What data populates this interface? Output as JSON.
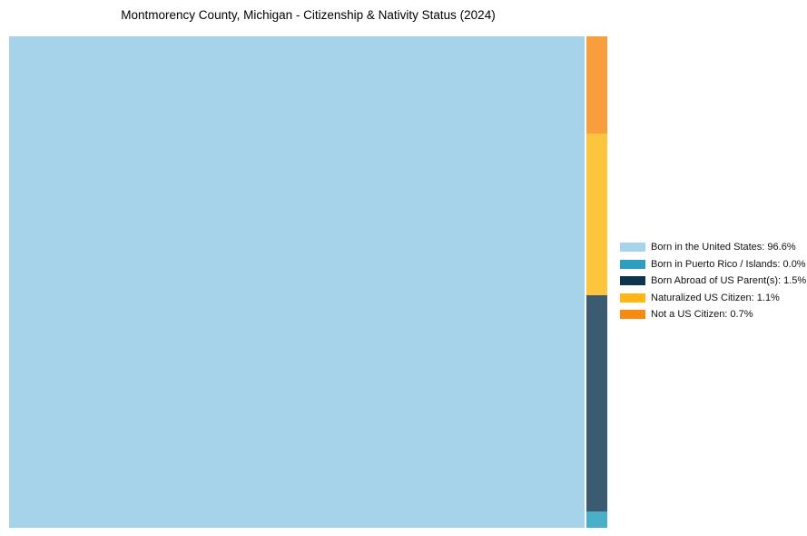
{
  "chart_data": {
    "type": "treemap",
    "title": "Montmorency County, Michigan - Citizenship & Nativity Status (2024)",
    "categories": [
      "Born in the United States",
      "Born in Puerto Rico / Islands",
      "Born Abroad of US Parent(s)",
      "Naturalized US Citizen",
      "Not a US Citizen"
    ],
    "values": [
      96.6,
      0.0,
      1.5,
      1.1,
      0.7
    ],
    "unit": "%",
    "legend_position": "right",
    "layout": {
      "main_tile": "Born in the United States",
      "right_strip_top_to_bottom": [
        "Not a US Citizen",
        "Naturalized US Citizen",
        "Born Abroad of US Parent(s)",
        "Born in Puerto Rico / Islands"
      ]
    },
    "tile_colors": {
      "born_us": "#a6d2ea",
      "puerto_rico": "#4bafc8",
      "born_abroad": "#3a5b70",
      "naturalized": "#fdc53d",
      "not_citizen": "#f99e3c"
    }
  },
  "legend": {
    "items": [
      {
        "label": "Born in the United States: 96.6%",
        "swatch_color": "#a8d4ea"
      },
      {
        "label": "Born in Puerto Rico / Islands: 0.0%",
        "swatch_color": "#2e9ebe"
      },
      {
        "label": "Born Abroad of US Parent(s): 1.5%",
        "swatch_color": "#0e3450"
      },
      {
        "label": "Naturalized US Citizen: 1.1%",
        "swatch_color": "#ffb614"
      },
      {
        "label": "Not a US Citizen: 0.7%",
        "swatch_color": "#f88a12"
      }
    ]
  }
}
